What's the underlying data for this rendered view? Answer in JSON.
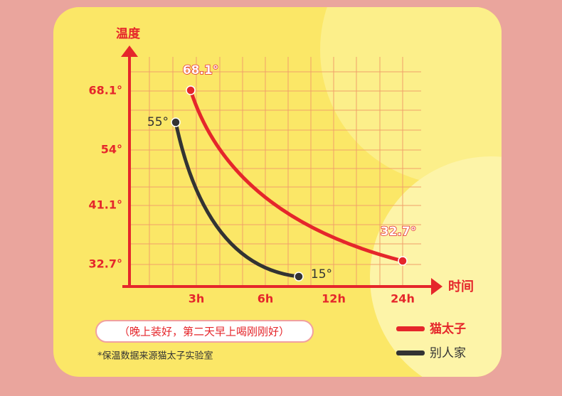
{
  "axis": {
    "y_title": "温度",
    "x_title": "时间",
    "y_labels": [
      "68.1°",
      "54°",
      "41.1°",
      "32.7°"
    ],
    "x_labels": [
      "3h",
      "6h",
      "12h",
      "24h"
    ]
  },
  "point_labels": {
    "ours_start": "68.1°",
    "ours_end": "32.7°",
    "theirs_start": "55°",
    "theirs_end": "15°"
  },
  "note": "（晚上装好，第二天早上喝刚刚好）",
  "footnote": "*保温数据来源猫太子实验室",
  "legend": [
    "猫太子",
    "别人家"
  ]
}
